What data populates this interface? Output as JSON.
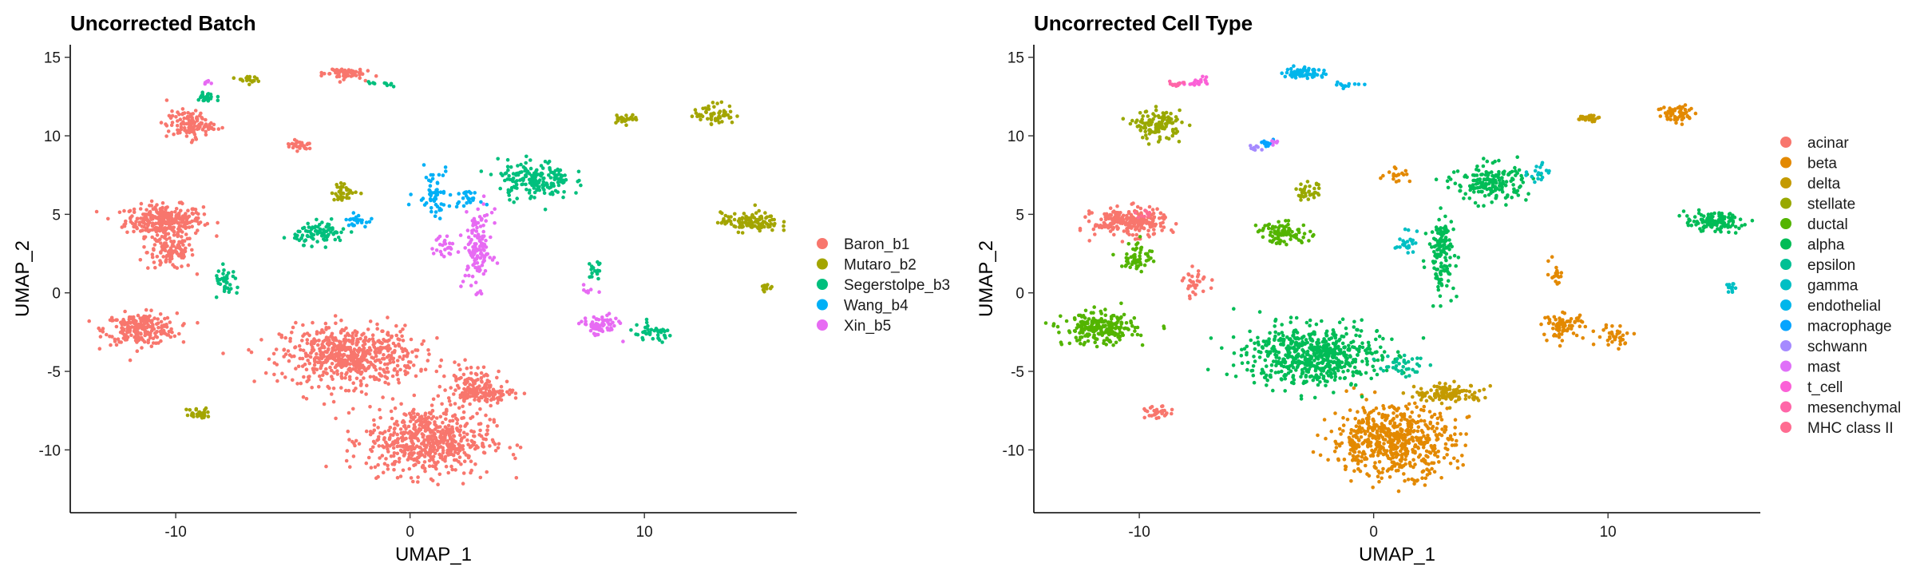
{
  "chart_data": [
    {
      "type": "scatter",
      "title": "Uncorrected Batch",
      "xlabel": "UMAP_1",
      "ylabel": "UMAP_2",
      "xlim": [
        -14.5,
        16.5
      ],
      "ylim": [
        -14,
        15.8
      ],
      "xticks": [
        -10,
        0,
        10
      ],
      "yticks": [
        15,
        10,
        5,
        0,
        -5,
        -10
      ],
      "xtick_labels": [
        "-10",
        "0",
        "10"
      ],
      "ytick_labels": [
        "15",
        "10",
        "5",
        "0",
        "-5",
        "-10"
      ],
      "grid": false,
      "legend_position": "right",
      "series": [
        {
          "name": "Baron_b1",
          "color": "#F8766D",
          "clusters": [
            {
              "center": [
                -10.5,
                4.6
              ],
              "spread": [
                1.5,
                0.9
              ],
              "weight": 5
            },
            {
              "center": [
                -10.2,
                2.6
              ],
              "spread": [
                0.9,
                1.0
              ],
              "weight": 2
            },
            {
              "center": [
                -11.5,
                -2.3
              ],
              "spread": [
                1.4,
                0.9
              ],
              "weight": 4
            },
            {
              "center": [
                -2.6,
                -4.0
              ],
              "spread": [
                2.6,
                1.7
              ],
              "weight": 10
            },
            {
              "center": [
                0.8,
                -9.4
              ],
              "spread": [
                2.4,
                2.0
              ],
              "weight": 10
            },
            {
              "center": [
                2.6,
                -5.5
              ],
              "spread": [
                0.9,
                0.9
              ],
              "weight": 1
            },
            {
              "center": [
                3.0,
                -6.4
              ],
              "spread": [
                1.3,
                0.5
              ],
              "weight": 2
            },
            {
              "center": [
                -9.4,
                10.7
              ],
              "spread": [
                0.9,
                0.8
              ],
              "weight": 2
            },
            {
              "center": [
                -2.9,
                14.0
              ],
              "spread": [
                0.8,
                0.35
              ],
              "weight": 1
            },
            {
              "center": [
                -4.7,
                9.4
              ],
              "spread": [
                0.6,
                0.3
              ],
              "weight": 0.5
            }
          ]
        },
        {
          "name": "Mutaro_b2",
          "color": "#A3A500",
          "clusters": [
            {
              "center": [
                14.5,
                4.5
              ],
              "spread": [
                1.1,
                0.55
              ],
              "weight": 2
            },
            {
              "center": [
                13.0,
                11.4
              ],
              "spread": [
                0.8,
                0.6
              ],
              "weight": 1
            },
            {
              "center": [
                9.2,
                11.1
              ],
              "spread": [
                0.5,
                0.25
              ],
              "weight": 0.5
            },
            {
              "center": [
                -2.8,
                6.4
              ],
              "spread": [
                0.5,
                0.5
              ],
              "weight": 0.6
            },
            {
              "center": [
                -9.0,
                -7.7
              ],
              "spread": [
                0.5,
                0.35
              ],
              "weight": 0.5
            },
            {
              "center": [
                15.2,
                0.4
              ],
              "spread": [
                0.2,
                0.3
              ],
              "weight": 0.2
            },
            {
              "center": [
                -7.0,
                13.6
              ],
              "spread": [
                0.4,
                0.2
              ],
              "weight": 0.3
            }
          ]
        },
        {
          "name": "Segerstolpe_b3",
          "color": "#00BF7D",
          "clusters": [
            {
              "center": [
                5.3,
                7.2
              ],
              "spread": [
                1.4,
                1.1
              ],
              "weight": 3
            },
            {
              "center": [
                -3.8,
                3.8
              ],
              "spread": [
                1.0,
                0.6
              ],
              "weight": 1.5
            },
            {
              "center": [
                -7.8,
                0.6
              ],
              "spread": [
                0.5,
                0.9
              ],
              "weight": 0.6
            },
            {
              "center": [
                10.3,
                -2.6
              ],
              "spread": [
                0.9,
                0.5
              ],
              "weight": 0.7
            },
            {
              "center": [
                -8.7,
                12.4
              ],
              "spread": [
                0.4,
                0.4
              ],
              "weight": 0.4
            },
            {
              "center": [
                -1.2,
                13.3
              ],
              "spread": [
                0.6,
                0.2
              ],
              "weight": 0.2
            },
            {
              "center": [
                7.9,
                1.5
              ],
              "spread": [
                0.3,
                0.6
              ],
              "weight": 0.3
            }
          ]
        },
        {
          "name": "Wang_b4",
          "color": "#00B0F6",
          "clusters": [
            {
              "center": [
                1.0,
                6.5
              ],
              "spread": [
                0.7,
                1.4
              ],
              "weight": 0.9
            },
            {
              "center": [
                -2.3,
                4.6
              ],
              "spread": [
                0.4,
                0.35
              ],
              "weight": 0.4
            },
            {
              "center": [
                2.4,
                6.0
              ],
              "spread": [
                0.5,
                0.4
              ],
              "weight": 0.4
            }
          ]
        },
        {
          "name": "Xin_b5",
          "color": "#E76BF3",
          "clusters": [
            {
              "center": [
                2.9,
                2.8
              ],
              "spread": [
                0.55,
                2.2
              ],
              "weight": 2.2
            },
            {
              "center": [
                8.1,
                -2.1
              ],
              "spread": [
                0.7,
                0.6
              ],
              "weight": 1.2
            },
            {
              "center": [
                1.4,
                2.9
              ],
              "spread": [
                0.45,
                0.7
              ],
              "weight": 0.4
            },
            {
              "center": [
                7.6,
                0.2
              ],
              "spread": [
                0.2,
                0.3
              ],
              "weight": 0.15
            },
            {
              "center": [
                -8.6,
                13.4
              ],
              "spread": [
                0.3,
                0.15
              ],
              "weight": 0.1
            }
          ]
        }
      ]
    },
    {
      "type": "scatter",
      "title": "Uncorrected Cell Type",
      "xlabel": "UMAP_1",
      "ylabel": "UMAP_2",
      "xlim": [
        -14.5,
        16.5
      ],
      "ylim": [
        -14,
        15.8
      ],
      "xticks": [
        -10,
        0,
        10
      ],
      "yticks": [
        15,
        10,
        5,
        0,
        -5,
        -10
      ],
      "xtick_labels": [
        "-10",
        "0",
        "10"
      ],
      "ytick_labels": [
        "15",
        "10",
        "5",
        "0",
        "-5",
        "-10"
      ],
      "grid": false,
      "legend_position": "right",
      "series": [
        {
          "name": "acinar",
          "color": "#F8766D",
          "clusters": [
            {
              "center": [
                -10.4,
                4.5
              ],
              "spread": [
                1.4,
                0.8
              ],
              "weight": 4
            },
            {
              "center": [
                -7.6,
                0.6
              ],
              "spread": [
                0.5,
                0.8
              ],
              "weight": 0.5
            },
            {
              "center": [
                -9.2,
                -7.7
              ],
              "spread": [
                0.5,
                0.4
              ],
              "weight": 0.5
            }
          ]
        },
        {
          "name": "beta",
          "color": "#E38900",
          "clusters": [
            {
              "center": [
                0.8,
                -9.4
              ],
              "spread": [
                2.4,
                2.0
              ],
              "weight": 10
            },
            {
              "center": [
                8.1,
                -2.1
              ],
              "spread": [
                0.8,
                0.7
              ],
              "weight": 1.2
            },
            {
              "center": [
                10.3,
                -2.7
              ],
              "spread": [
                0.7,
                0.6
              ],
              "weight": 0.6
            },
            {
              "center": [
                13.0,
                11.4
              ],
              "spread": [
                0.8,
                0.6
              ],
              "weight": 1
            },
            {
              "center": [
                1.0,
                7.6
              ],
              "spread": [
                0.5,
                0.5
              ],
              "weight": 0.3
            },
            {
              "center": [
                7.8,
                1.2
              ],
              "spread": [
                0.3,
                0.7
              ],
              "weight": 0.3
            }
          ]
        },
        {
          "name": "delta",
          "color": "#C49A00",
          "clusters": [
            {
              "center": [
                3.2,
                -6.4
              ],
              "spread": [
                1.3,
                0.5
              ],
              "weight": 2
            },
            {
              "center": [
                9.2,
                11.1
              ],
              "spread": [
                0.5,
                0.25
              ],
              "weight": 0.5
            }
          ]
        },
        {
          "name": "stellate",
          "color": "#99A800",
          "clusters": [
            {
              "center": [
                -9.2,
                10.7
              ],
              "spread": [
                0.9,
                0.8
              ],
              "weight": 2
            },
            {
              "center": [
                -2.8,
                6.4
              ],
              "spread": [
                0.5,
                0.5
              ],
              "weight": 0.6
            }
          ]
        },
        {
          "name": "ductal",
          "color": "#53B400",
          "clusters": [
            {
              "center": [
                -11.7,
                -2.3
              ],
              "spread": [
                1.4,
                0.9
              ],
              "weight": 4
            },
            {
              "center": [
                -3.8,
                3.8
              ],
              "spread": [
                1.0,
                0.6
              ],
              "weight": 1.5
            },
            {
              "center": [
                -10.1,
                2.3
              ],
              "spread": [
                0.6,
                0.9
              ],
              "weight": 1
            }
          ]
        },
        {
          "name": "alpha",
          "color": "#00BC56",
          "clusters": [
            {
              "center": [
                -2.6,
                -4.0
              ],
              "spread": [
                2.6,
                1.7
              ],
              "weight": 10
            },
            {
              "center": [
                5.0,
                7.0
              ],
              "spread": [
                1.4,
                1.1
              ],
              "weight": 3
            },
            {
              "center": [
                2.9,
                2.5
              ],
              "spread": [
                0.5,
                2.2
              ],
              "weight": 2.2
            },
            {
              "center": [
                14.5,
                4.5
              ],
              "spread": [
                1.1,
                0.55
              ],
              "weight": 2
            }
          ]
        },
        {
          "name": "epsilon",
          "color": "#00C094",
          "clusters": [
            {
              "center": [
                1.2,
                -4.6
              ],
              "spread": [
                0.9,
                0.6
              ],
              "weight": 0.6
            }
          ]
        },
        {
          "name": "gamma",
          "color": "#00BFC4",
          "clusters": [
            {
              "center": [
                1.4,
                3.2
              ],
              "spread": [
                0.4,
                0.6
              ],
              "weight": 0.4
            },
            {
              "center": [
                15.2,
                0.4
              ],
              "spread": [
                0.2,
                0.3
              ],
              "weight": 0.2
            },
            {
              "center": [
                7.0,
                7.6
              ],
              "spread": [
                0.4,
                0.6
              ],
              "weight": 0.3
            }
          ]
        },
        {
          "name": "endothelial",
          "color": "#00B6EB",
          "clusters": [
            {
              "center": [
                -2.9,
                14.0
              ],
              "spread": [
                0.8,
                0.35
              ],
              "weight": 1
            },
            {
              "center": [
                -1.0,
                13.3
              ],
              "spread": [
                0.6,
                0.2
              ],
              "weight": 0.2
            }
          ]
        },
        {
          "name": "macrophage",
          "color": "#06A4FF",
          "clusters": [
            {
              "center": [
                -4.6,
                9.5
              ],
              "spread": [
                0.3,
                0.2
              ],
              "weight": 0.2
            }
          ]
        },
        {
          "name": "schwann",
          "color": "#A58AFF",
          "clusters": [
            {
              "center": [
                -5.0,
                9.2
              ],
              "spread": [
                0.3,
                0.2
              ],
              "weight": 0.15
            }
          ]
        },
        {
          "name": "mast",
          "color": "#DF70F8",
          "clusters": [
            {
              "center": [
                -4.3,
                9.6
              ],
              "spread": [
                0.2,
                0.15
              ],
              "weight": 0.1
            }
          ]
        },
        {
          "name": "t_cell",
          "color": "#FB61D7",
          "clusters": [
            {
              "center": [
                -7.5,
                13.5
              ],
              "spread": [
                0.5,
                0.3
              ],
              "weight": 0.3
            }
          ]
        },
        {
          "name": "mesenchymal",
          "color": "#FF66A8",
          "clusters": [
            {
              "center": [
                -8.4,
                13.3
              ],
              "spread": [
                0.4,
                0.2
              ],
              "weight": 0.2
            }
          ]
        },
        {
          "name": "MHC class II",
          "color": "#FF6C91",
          "clusters": [
            {
              "center": [
                -9.8,
                5.0
              ],
              "spread": [
                0.3,
                0.3
              ],
              "weight": 0.15
            }
          ]
        }
      ]
    }
  ]
}
